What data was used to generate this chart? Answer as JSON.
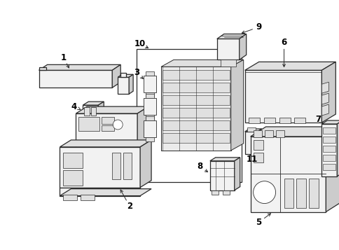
{
  "background_color": "#ffffff",
  "line_color": "#2a2a2a",
  "text_color": "#000000",
  "fig_width": 4.85,
  "fig_height": 3.57,
  "dpi": 100
}
